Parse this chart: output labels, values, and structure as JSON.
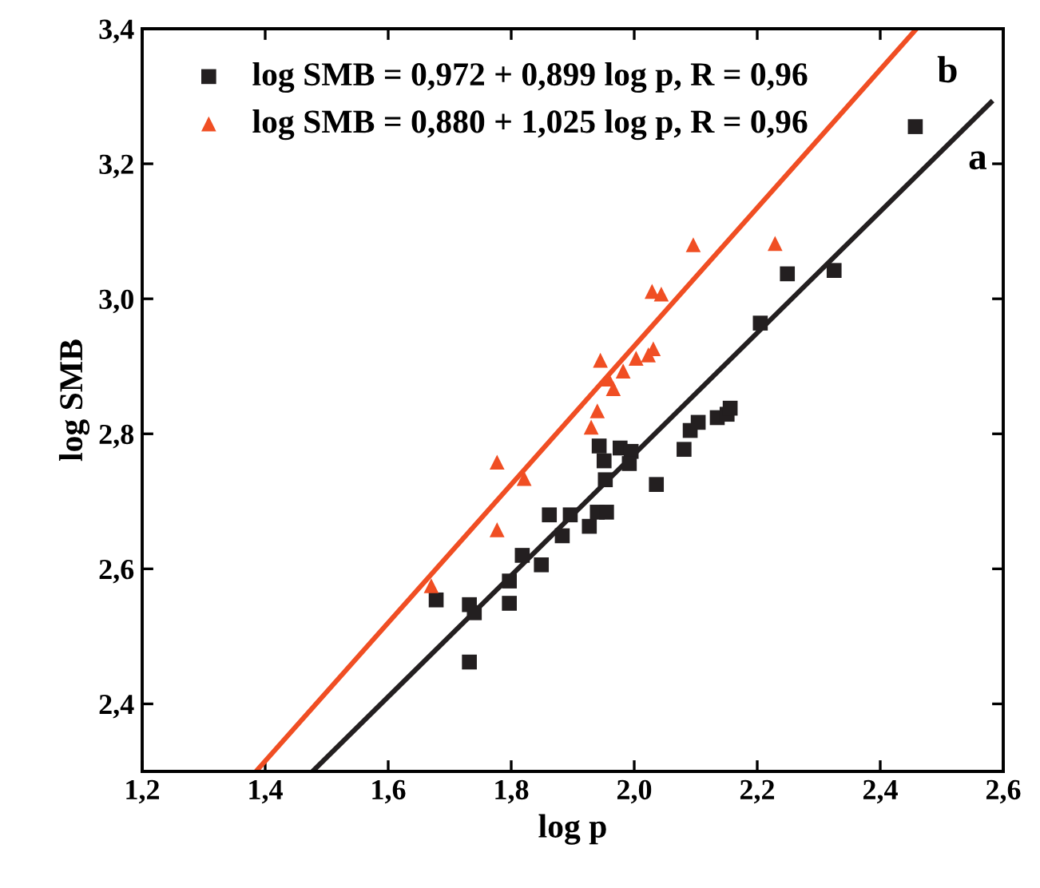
{
  "chart_data": {
    "type": "scatter",
    "xlabel": "log p",
    "ylabel": "log SMB",
    "xlim": [
      1.2,
      2.6
    ],
    "ylim": [
      2.3,
      3.4
    ],
    "xticks": [
      {
        "value": 1.2,
        "label": "1,2"
      },
      {
        "value": 1.4,
        "label": "1,4"
      },
      {
        "value": 1.6,
        "label": "1,6"
      },
      {
        "value": 1.8,
        "label": "1,8"
      },
      {
        "value": 2.0,
        "label": "2,0"
      },
      {
        "value": 2.2,
        "label": "2,2"
      },
      {
        "value": 2.4,
        "label": "2,4"
      },
      {
        "value": 2.6,
        "label": "2,6"
      }
    ],
    "yticks": [
      {
        "value": 2.4,
        "label": "2,4"
      },
      {
        "value": 2.6,
        "label": "2,6"
      },
      {
        "value": 2.8,
        "label": "2,8"
      },
      {
        "value": 3.0,
        "label": "3,0"
      },
      {
        "value": 3.2,
        "label": "3,2"
      },
      {
        "value": 3.4,
        "label": "3,4"
      }
    ],
    "legend": "top left",
    "grid": false,
    "series": [
      {
        "name": "log SMB = 0,972 + 0,899 log p, R = 0,96",
        "color": "#231f20",
        "marker": "square",
        "x": [
          1.678,
          1.732,
          1.732,
          1.74,
          1.797,
          1.797,
          1.818,
          1.849,
          1.862,
          1.883,
          1.896,
          1.927,
          1.94,
          1.955,
          1.943,
          1.951,
          1.953,
          1.977,
          1.995,
          1.992,
          2.036,
          2.081,
          2.091,
          2.104,
          2.135,
          2.151,
          2.156,
          2.205,
          2.249,
          2.325,
          2.457
        ],
        "values": [
          2.554,
          2.462,
          2.547,
          2.535,
          2.582,
          2.549,
          2.62,
          2.606,
          2.68,
          2.649,
          2.68,
          2.663,
          2.684,
          2.684,
          2.782,
          2.76,
          2.732,
          2.779,
          2.774,
          2.756,
          2.725,
          2.777,
          2.805,
          2.817,
          2.824,
          2.829,
          2.838,
          2.964,
          3.037,
          3.042,
          3.255
        ]
      },
      {
        "name": "log SMB = 0,880 + 1,025 log p, R = 0,96",
        "color": "#f04e23",
        "marker": "triangle",
        "x": [
          1.67,
          1.777,
          1.777,
          1.821,
          1.945,
          1.93,
          1.94,
          1.958,
          1.966,
          1.982,
          2.003,
          2.023,
          2.031,
          2.029,
          2.044,
          2.096,
          2.229
        ],
        "values": [
          2.575,
          2.758,
          2.658,
          2.734,
          2.909,
          2.81,
          2.834,
          2.881,
          2.867,
          2.893,
          2.912,
          2.917,
          2.926,
          3.011,
          3.007,
          3.08,
          3.082
        ]
      },
      {
        "type": "line",
        "color": "#231f20",
        "x": [
          1.477,
          2.58
        ],
        "values": [
          2.3,
          3.291
        ]
      },
      {
        "type": "line",
        "color": "#f04e23",
        "x": [
          1.385,
          2.459
        ],
        "values": [
          2.3,
          3.4
        ]
      }
    ],
    "annotations": [
      "a",
      "b"
    ]
  }
}
